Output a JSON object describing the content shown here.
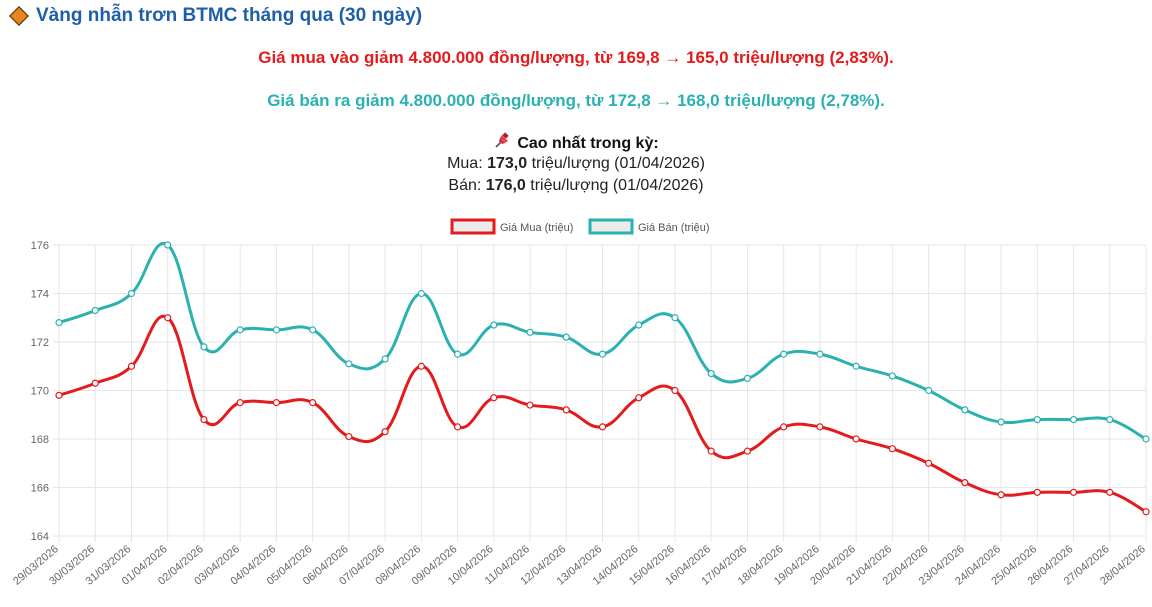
{
  "header": {
    "title": "Vàng nhẫn trơn BTMC tháng qua (30 ngày)",
    "buy_summary": "Giá mua vào giảm 4.800.000 đồng/lượng, từ 169,8 → 165,0 triệu/lượng (2,83%).",
    "sell_summary": "Giá bán ra giảm 4.800.000 đồng/lượng, từ 172,8 → 168,0 triệu/lượng (2,78%).",
    "peak_title": "Cao nhất trong kỳ:",
    "peak_buy_label": "Mua:",
    "peak_buy_value": "173,0",
    "peak_buy_rest": "triệu/lượng (01/04/2026)",
    "peak_sell_label": "Bán:",
    "peak_sell_value": "176,0",
    "peak_sell_rest": "triệu/lượng (01/04/2026)"
  },
  "colors": {
    "title": "#1f5fa8",
    "buy": "#e41a1c",
    "sell": "#2bb1b1",
    "grid": "#e6e6e6",
    "tick": "#666666"
  },
  "icons": {
    "title_icon": "orange-diamond-icon",
    "peak_icon": "pushpin-icon"
  },
  "chart_data": {
    "type": "line",
    "x": [
      "29/03/2026",
      "30/03/2026",
      "31/03/2026",
      "01/04/2026",
      "02/04/2026",
      "03/04/2026",
      "04/04/2026",
      "05/04/2026",
      "06/04/2026",
      "07/04/2026",
      "08/04/2026",
      "09/04/2026",
      "10/04/2026",
      "11/04/2026",
      "12/04/2026",
      "13/04/2026",
      "14/04/2026",
      "15/04/2026",
      "16/04/2026",
      "17/04/2026",
      "18/04/2026",
      "19/04/2026",
      "20/04/2026",
      "21/04/2026",
      "22/04/2026",
      "23/04/2026",
      "24/04/2026",
      "25/04/2026",
      "26/04/2026",
      "27/04/2026",
      "28/04/2026"
    ],
    "series": [
      {
        "name": "Giá Mua (triệu)",
        "color": "#e41a1c",
        "values": [
          169.8,
          170.3,
          171.0,
          173.0,
          168.8,
          169.5,
          169.5,
          169.5,
          168.1,
          168.3,
          171.0,
          168.5,
          169.7,
          169.4,
          169.2,
          168.5,
          169.7,
          170.0,
          167.5,
          167.5,
          168.5,
          168.5,
          168.0,
          167.6,
          167.0,
          166.2,
          165.7,
          165.8,
          165.8,
          165.8,
          165.0
        ]
      },
      {
        "name": "Giá Bán (triệu)",
        "color": "#2bb1b1",
        "values": [
          172.8,
          173.3,
          174.0,
          176.0,
          171.8,
          172.5,
          172.5,
          172.5,
          171.1,
          171.3,
          174.0,
          171.5,
          172.7,
          172.4,
          172.2,
          171.5,
          172.7,
          173.0,
          170.7,
          170.5,
          171.5,
          171.5,
          171.0,
          170.6,
          170.0,
          169.2,
          168.7,
          168.8,
          168.8,
          168.8,
          168.0
        ]
      }
    ],
    "ylim": [
      164,
      176
    ],
    "yticks": [
      164,
      166,
      168,
      170,
      172,
      174,
      176
    ],
    "grid": true,
    "legend": "top-center"
  }
}
